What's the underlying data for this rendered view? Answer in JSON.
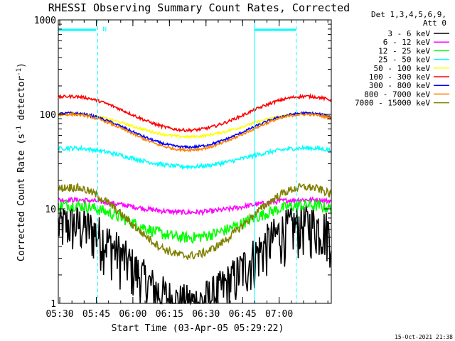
{
  "chart_data": {
    "type": "line",
    "title": "RHESSI Observing Summary Count Rates, Corrected",
    "xlabel": "Start Time (03-Apr-05 05:29:22)",
    "ylabel": "Corrected Count Rate (s⁻¹ detector⁻¹)",
    "ylabel_parts": {
      "a": "Corrected Count Rate (s",
      "e1": "-1",
      "b": " detector",
      "e2": "-1",
      "c": ")"
    },
    "footer": "15-Oct-2021 21:38",
    "y_scale": "log",
    "ylim": [
      1,
      1000
    ],
    "y_ticks": [
      {
        "v": 1,
        "label": "1"
      },
      {
        "v": 10,
        "label": "10"
      },
      {
        "v": 100,
        "label": "100"
      },
      {
        "v": 1000,
        "label": "1000"
      }
    ],
    "xlim_min": [
      0,
      112
    ],
    "x_ticks": [
      {
        "v": 0.6,
        "label": "05:30"
      },
      {
        "v": 15.6,
        "label": "05:45"
      },
      {
        "v": 30.6,
        "label": "06:00"
      },
      {
        "v": 45.6,
        "label": "06:15"
      },
      {
        "v": 60.6,
        "label": "06:30"
      },
      {
        "v": 75.6,
        "label": "06:45"
      },
      {
        "v": 90.6,
        "label": "07:00"
      }
    ],
    "legend_header": [
      "Det 1,3,4,5,6,9,",
      "Att 0"
    ],
    "markers": {
      "night_bar_label": "N",
      "saa_line_min": [
        0.0,
        80.5
      ],
      "night_line_min": [
        16.2,
        97.6
      ],
      "saa_bar": [
        [
          0,
          15.5
        ],
        [
          80.5,
          97.6
        ]
      ]
    },
    "series": [
      {
        "name": "3 - 6 keV",
        "color": "#000000",
        "min": 1.0,
        "max": 7.0,
        "noise": 0.6
      },
      {
        "name": "6 - 12 keV",
        "color": "#ff00ff",
        "min": 9.2,
        "max": 12.5,
        "noise": 0.06
      },
      {
        "name": "12 - 25 keV",
        "color": "#00ff00",
        "min": 5.0,
        "max": 11.0,
        "noise": 0.14
      },
      {
        "name": "25 - 50 keV",
        "color": "#00ffff",
        "min": 28,
        "max": 44,
        "noise": 0.05
      },
      {
        "name": "50 - 100 keV",
        "color": "#ffff00",
        "min": 58,
        "max": 102,
        "noise": 0.03
      },
      {
        "name": "100 - 300 keV",
        "color": "#ff0000",
        "min": 68,
        "max": 155,
        "noise": 0.035
      },
      {
        "name": "300 - 800 keV",
        "color": "#0000ff",
        "min": 45,
        "max": 103,
        "noise": 0.03
      },
      {
        "name": "800 - 7000 keV",
        "color": "#ff8000",
        "min": 42,
        "max": 100,
        "noise": 0.03
      },
      {
        "name": "7000 - 15000 keV",
        "color": "#808000",
        "min": 3.2,
        "max": 17.0,
        "noise": 0.1
      }
    ]
  }
}
